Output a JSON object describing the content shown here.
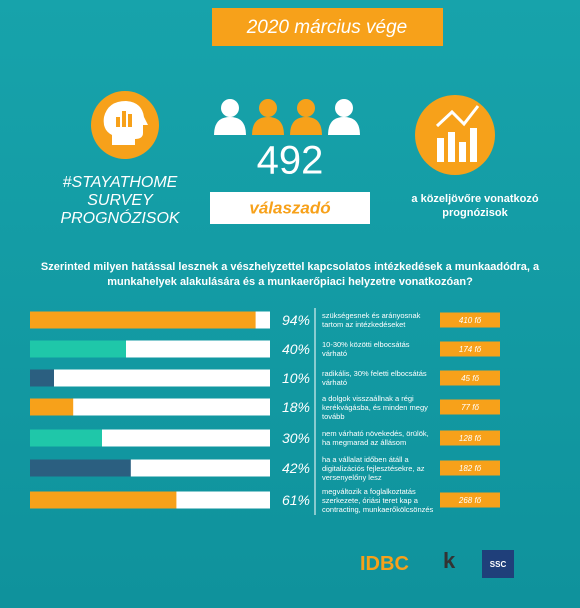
{
  "header": {
    "title": "2020 március vége",
    "hashtag": [
      "#STAYATHOME",
      "SURVEY",
      "PROGNÓZISOK"
    ],
    "respondents": 492,
    "respondents_label": "válaszadó",
    "forecast": [
      "a közeljövőre vonatkozó",
      "prognózisok"
    ]
  },
  "chart_data": {
    "type": "hbar",
    "title": "Szerinted milyen hatással lesznek a vészhelyzettel kapcsolatos intézkedések a munkaadódra, a munkahelyek alakulására és a munkaerőpiaci helyzetre vonatkozóan?",
    "categories": [
      "szükségesnek és arányosnak tartom az intézkedéseket",
      "10-30% közötti elbocsátás várható",
      "radikális, 30% feletti elbocsátás várható",
      "a dolgok visszaállnak a régi kerékvágásba, és minden megy tovább",
      "nem várható növekedés, örülök, ha megmarad az állásom",
      "ha a vállalat időben átáll a digitalizációs fejlesztésekre, az versenyelőny lesz",
      "megváltozik a foglalkoztatás szerkezete, óriási teret kap a contracting, munkaerőkölcsönzés"
    ],
    "values": [
      94,
      40,
      10,
      18,
      30,
      42,
      61
    ],
    "value_labels": [
      "94%",
      "40%",
      "10%",
      "18%",
      "30%",
      "42%",
      "61%"
    ],
    "count_labels": [
      "410 fő",
      "174 fő",
      "45 fő",
      "77 fő",
      "128 fő",
      "182 fő",
      "268 fő"
    ],
    "colors": [
      "#f7a11a",
      "#1fc7a9",
      "#2b5f80",
      "#f7a11a",
      "#1fc7a9",
      "#2b5f80",
      "#f7a11a"
    ],
    "xlim": [
      0,
      100
    ]
  },
  "logos": [
    "IDBC",
    "k",
    "SSC"
  ]
}
